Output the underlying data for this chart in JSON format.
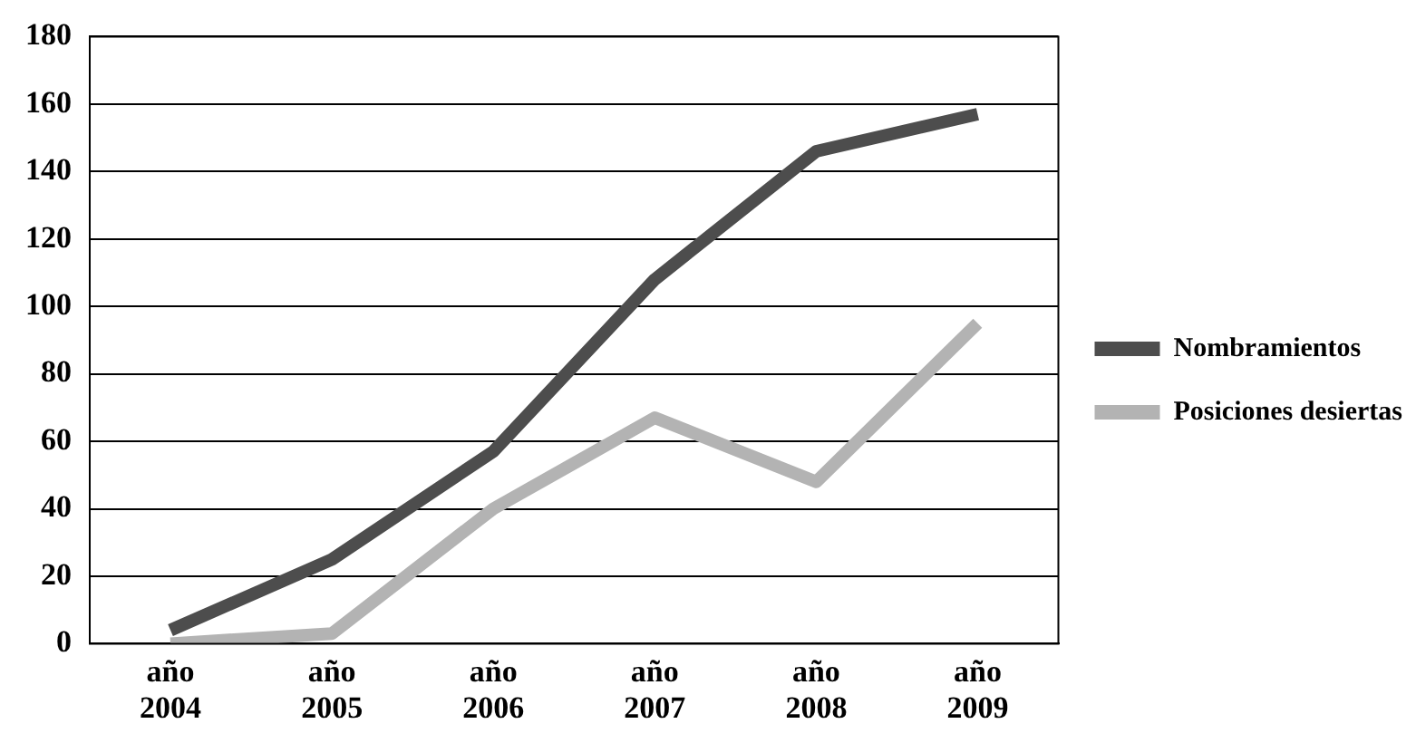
{
  "chart_data": {
    "type": "line",
    "categories": [
      "año 2004",
      "año 2005",
      "año 2006",
      "año 2007",
      "año 2008",
      "año 2009"
    ],
    "series": [
      {
        "name": "Nombramientos",
        "color": "#4d4d4d",
        "values": [
          4,
          25,
          57,
          108,
          146,
          157
        ]
      },
      {
        "name": "Posiciones desiertas",
        "color": "#b3b3b3",
        "values": [
          0,
          3,
          40,
          67,
          48,
          95
        ]
      }
    ],
    "ylim": [
      0,
      180
    ],
    "yticks": [
      0,
      20,
      40,
      60,
      80,
      100,
      120,
      140,
      160,
      180
    ],
    "grid": "y",
    "legend": "right",
    "marker": "none",
    "line_style": "solid"
  }
}
